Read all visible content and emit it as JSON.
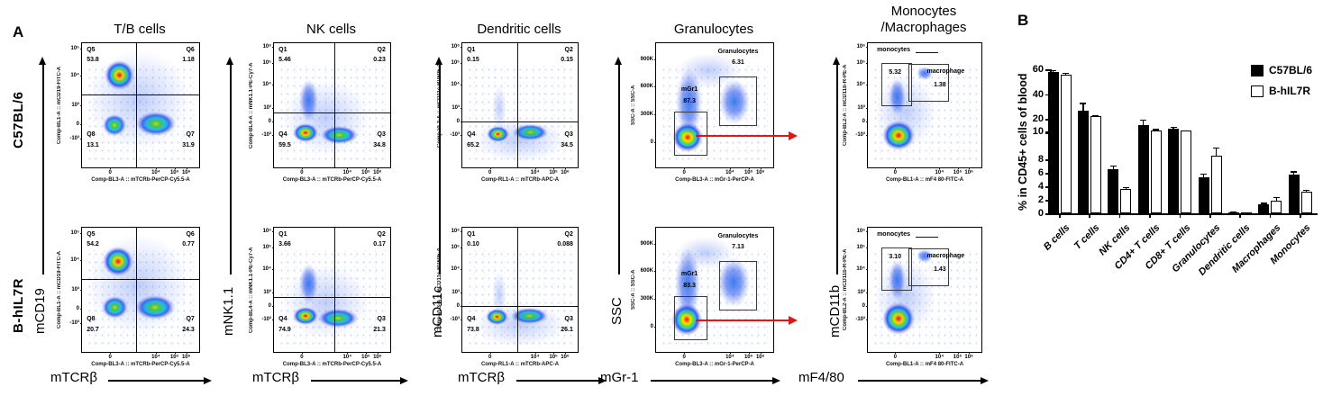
{
  "figure": {
    "panel_a_label": "A",
    "panel_b_label": "B",
    "rows": [
      "C57BL/6",
      "B-hIL7R"
    ],
    "tick_sets": {
      "fitc5": [
        [
          "10⁵",
          4
        ],
        [
          "10⁴",
          26
        ],
        [
          "10³",
          50
        ],
        [
          "0",
          65
        ],
        [
          "-10³",
          77
        ]
      ],
      "log6": [
        [
          "10⁶",
          3
        ],
        [
          "10⁵",
          16
        ],
        [
          "10⁴",
          33
        ],
        [
          "10³",
          52
        ],
        [
          "0",
          63
        ],
        [
          "-10³",
          74
        ]
      ],
      "ssc": [
        [
          "900K",
          13
        ],
        [
          "600K",
          35
        ],
        [
          "300K",
          57
        ],
        [
          "0",
          80
        ]
      ],
      "logx": [
        [
          "0",
          24
        ],
        [
          "10⁴",
          63
        ],
        [
          "10⁵",
          79
        ],
        [
          "10⁶",
          89
        ]
      ]
    },
    "columns": [
      {
        "title": "T/B cells",
        "y_marker": "mCD19",
        "x_marker": "mTCRβ",
        "y_axis": "Comp-BL1-A :: mCD19-FITC-A",
        "x_axis": "Comp-BL3-A :: mTCRb-PerCP-Cy5.5-A",
        "y_tick_set": "fitc5",
        "plots": [
          {
            "kind": "quad",
            "cross": [
              46,
              41
            ],
            "quads": {
              "tl": [
                "Q5",
                "53.8"
              ],
              "tr": [
                "Q6",
                "1.18"
              ],
              "bl": [
                "Q8",
                "13.1"
              ],
              "br": [
                "Q7",
                "31.9"
              ]
            },
            "blobs": [
              [
                32,
                26,
                26,
                24,
                "hot"
              ],
              [
                28,
                66,
                20,
                17,
                "warm"
              ],
              [
                63,
                65,
                34,
                20,
                "warm"
              ],
              [
                48,
                46,
                88,
                82,
                "speck"
              ]
            ]
          },
          {
            "kind": "quad",
            "cross": [
              46,
              41
            ],
            "quads": {
              "tl": [
                "Q5",
                "54.2"
              ],
              "tr": [
                "Q6",
                "0.77"
              ],
              "bl": [
                "Q8",
                "20.7"
              ],
              "br": [
                "Q7",
                "24.3"
              ]
            },
            "blobs": [
              [
                31,
                27,
                26,
                24,
                "hot"
              ],
              [
                28,
                64,
                22,
                18,
                "warm"
              ],
              [
                62,
                64,
                34,
                20,
                "warm"
              ],
              [
                48,
                46,
                88,
                82,
                "speck"
              ]
            ]
          }
        ]
      },
      {
        "title": "NK cells",
        "y_marker": "mNK1.1",
        "x_marker": "mTCRβ",
        "y_axis": "Comp-BL4-A :: mNK1.1-PE-Cy7-A",
        "x_axis": "Comp-BL3-A :: mTCRb-PerCP-Cy5.5-A",
        "y_tick_set": "log6",
        "plots": [
          {
            "kind": "quad",
            "cross": [
              52,
              56
            ],
            "quads": {
              "tl": [
                "Q1",
                "5.46"
              ],
              "tr": [
                "Q2",
                "0.23"
              ],
              "bl": [
                "Q4",
                "59.5"
              ],
              "br": [
                "Q3",
                "34.8"
              ]
            },
            "blobs": [
              [
                27,
                72,
                22,
                15,
                "hot"
              ],
              [
                56,
                74,
                32,
                15,
                "warm"
              ],
              [
                30,
                46,
                16,
                34,
                "cool"
              ],
              [
                45,
                60,
                75,
                60,
                "speck"
              ]
            ]
          },
          {
            "kind": "quad",
            "cross": [
              52,
              56
            ],
            "quads": {
              "tl": [
                "Q1",
                "3.66"
              ],
              "tr": [
                "Q2",
                "0.17"
              ],
              "bl": [
                "Q4",
                "74.9"
              ],
              "br": [
                "Q3",
                "21.3"
              ]
            },
            "blobs": [
              [
                27,
                71,
                22,
                15,
                "hot"
              ],
              [
                55,
                73,
                34,
                15,
                "warm"
              ],
              [
                30,
                45,
                16,
                32,
                "cool"
              ],
              [
                45,
                60,
                75,
                60,
                "speck"
              ]
            ]
          }
        ]
      },
      {
        "title": "Dendritic cells",
        "y_marker": "mCD11c",
        "x_marker": "mTCRβ",
        "y_axis": "Comp-VL3-A :: mCD11c-BV605-A",
        "x_axis": "Comp-RL1-A :: mTCRb-APC-A",
        "y_tick_set": "log6",
        "plots": [
          {
            "kind": "quad",
            "cross": [
              48,
              63
            ],
            "quads": {
              "tl": [
                "Q1",
                "0.15"
              ],
              "tr": [
                "Q2",
                "0.15"
              ],
              "bl": [
                "Q4",
                "65.2"
              ],
              "br": [
                "Q3",
                "34.5"
              ]
            },
            "blobs": [
              [
                31,
                73,
                20,
                13,
                "hot"
              ],
              [
                59,
                72,
                30,
                13,
                "warm"
              ],
              [
                32,
                52,
                13,
                38,
                "speck"
              ],
              [
                50,
                78,
                80,
                35,
                "speck"
              ]
            ]
          },
          {
            "kind": "quad",
            "cross": [
              48,
              63
            ],
            "quads": {
              "tl": [
                "Q1",
                "0.10"
              ],
              "tr": [
                "Q2",
                "0.088"
              ],
              "bl": [
                "Q4",
                "73.8"
              ],
              "br": [
                "Q3",
                "26.1"
              ]
            },
            "blobs": [
              [
                30,
                72,
                20,
                13,
                "hot"
              ],
              [
                58,
                71,
                32,
                13,
                "warm"
              ],
              [
                32,
                54,
                13,
                38,
                "speck"
              ],
              [
                50,
                78,
                80,
                35,
                "speck"
              ]
            ]
          }
        ]
      },
      {
        "title": "Granulocytes",
        "y_marker": "SSC",
        "x_marker": "mGr-1",
        "y_axis": "SSC-A :: SSC-A",
        "x_axis": "Comp-BL3-A :: mGr-1-PerCP-A",
        "y_tick_set": "ssc",
        "plots": [
          {
            "kind": "gates2",
            "gate1": [
              "mGr1",
              "87.3"
            ],
            "gate2": [
              "Granulocytes",
              "6.31"
            ],
            "red_arrow": true,
            "blobs": [
              [
                27,
                76,
                26,
                24,
                "hot"
              ],
              [
                28,
                48,
                22,
                55,
                "cool"
              ],
              [
                67,
                47,
                26,
                36,
                "cool"
              ],
              [
                45,
                22,
                55,
                28,
                "speck"
              ]
            ]
          },
          {
            "kind": "gates2",
            "gate1": [
              "mGr1",
              "83.3"
            ],
            "gate2": [
              "Granulocytes",
              "7.13"
            ],
            "red_arrow": true,
            "blobs": [
              [
                26,
                74,
                26,
                26,
                "hot"
              ],
              [
                27,
                45,
                22,
                58,
                "cool"
              ],
              [
                66,
                44,
                28,
                40,
                "cool"
              ],
              [
                42,
                20,
                50,
                26,
                "speck"
              ]
            ]
          }
        ]
      },
      {
        "title": "Monocytes",
        "title2": "/Macrophages",
        "y_marker": "mCD11b",
        "x_marker": "mF4/80",
        "y_axis": "Comp-BL2-A :: mCD11b-R-PE-A",
        "x_axis": "Comp-BL1-A :: mF4 80-FITC-A",
        "y_tick_set": "log6",
        "plots": [
          {
            "kind": "mono",
            "gate1": [
              "monocytes",
              "5.32"
            ],
            "gate2": [
              "macrophage",
              "1.38"
            ],
            "blobs": [
              [
                27,
                74,
                28,
                24,
                "hot"
              ],
              [
                26,
                43,
                15,
                30,
                "cool"
              ],
              [
                50,
                24,
                14,
                11,
                "cool"
              ],
              [
                33,
                55,
                55,
                60,
                "speck"
              ]
            ]
          },
          {
            "kind": "mono",
            "gate1": [
              "monocytes",
              "3.10"
            ],
            "gate2": [
              "macrophage",
              "1.43"
            ],
            "blobs": [
              [
                27,
                73,
                28,
                26,
                "hot"
              ],
              [
                26,
                42,
                15,
                32,
                "cool"
              ],
              [
                50,
                23,
                14,
                11,
                "cool"
              ],
              [
                33,
                55,
                55,
                60,
                "speck"
              ]
            ]
          }
        ]
      }
    ]
  },
  "chart_data": {
    "type": "bar",
    "title": "",
    "xlabel": "",
    "ylabel": "% in CD45+ cells of blood",
    "categories": [
      "B cells",
      "T cells",
      "NK cells",
      "CD4+ T cells",
      "CD8+ T cells",
      "Granulocytes",
      "Dendritic cells",
      "Macrophages",
      "Monocytes"
    ],
    "series": [
      {
        "name": "C57BL/6",
        "fill": "#000000",
        "values": [
          58,
          27,
          6.5,
          15,
          12,
          5.4,
          0.2,
          1.3,
          5.8
        ],
        "errors": [
          1.5,
          6,
          0.6,
          4.5,
          1.8,
          0.5,
          0.1,
          0.25,
          0.45
        ]
      },
      {
        "name": "B-hIL7R",
        "fill": "#ffffff",
        "values": [
          56,
          22,
          3.6,
          11,
          10.5,
          8.6,
          0.12,
          1.9,
          3.2
        ],
        "errors": [
          1.2,
          1.3,
          0.3,
          1,
          0.5,
          1.2,
          0.05,
          0.5,
          0.3
        ]
      }
    ],
    "axis_break": {
      "lower_range": [
        0,
        10
      ],
      "upper_range": [
        10,
        60
      ]
    },
    "yticks_lower": [
      0,
      2,
      4,
      6,
      8,
      10
    ],
    "yticks_upper": [
      20,
      40,
      60
    ],
    "legend_position": "top-right",
    "grid": false
  }
}
